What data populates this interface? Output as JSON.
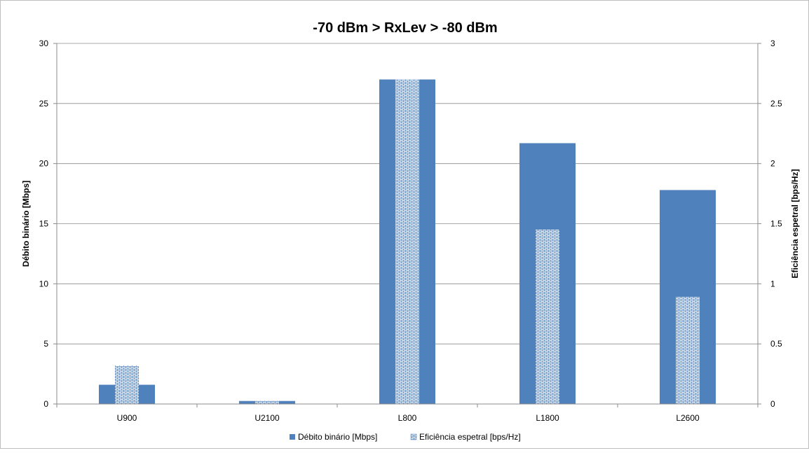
{
  "chart_data": {
    "type": "bar",
    "title": "-70 dBm > RxLev > -80 dBm",
    "categories": [
      "U900",
      "U2100",
      "L800",
      "L1800",
      "L2600"
    ],
    "series": [
      {
        "name": "Débito binário [Mbps]",
        "axis": "left",
        "values": [
          1.6,
          0.25,
          27.0,
          21.7,
          17.8
        ],
        "color": "#4F81BD",
        "pattern": "solid"
      },
      {
        "name": "Eficiência espetral [bps/Hz]",
        "axis": "right",
        "values": [
          0.32,
          0.025,
          2.7,
          1.45,
          0.89
        ],
        "color": "#4F81BD",
        "pattern": "brick"
      }
    ],
    "ylabel": "Débito binário [Mbps]",
    "y2label": "Eficiência espetral [bps/Hz]",
    "ylim": [
      0,
      30
    ],
    "y2lim": [
      0,
      3
    ],
    "yticks": [
      "0",
      "5",
      "10",
      "15",
      "20",
      "25",
      "30"
    ],
    "y2ticks": [
      "0",
      "0.5",
      "1",
      "1.5",
      "2",
      "2.5",
      "3"
    ],
    "grid": true,
    "legend_position": "bottom"
  }
}
